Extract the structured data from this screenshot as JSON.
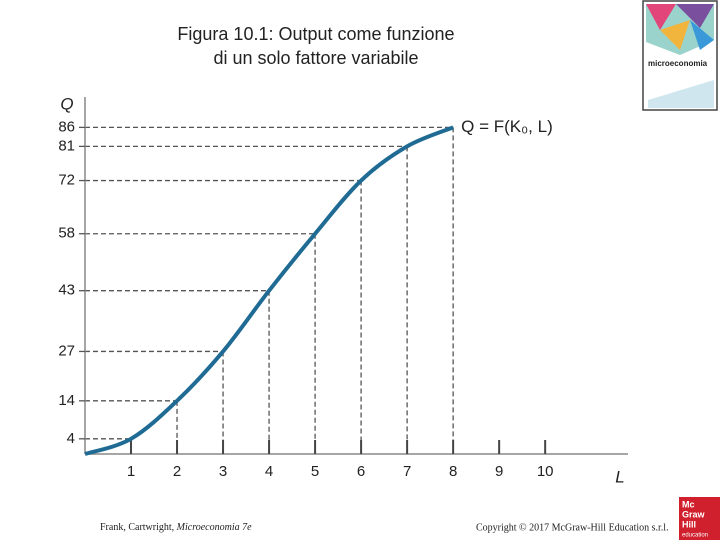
{
  "chart_data": {
    "type": "line",
    "title": [
      "Figura 10.1: Output come funzione",
      "di un solo fattore variabile"
    ],
    "y_label": "Q",
    "x_label": "L",
    "curve_label": "Q = F(K₀, L)",
    "x": [
      0,
      1,
      2,
      3,
      4,
      5,
      6,
      7,
      8
    ],
    "values": [
      0,
      4,
      14,
      27,
      43,
      58,
      72,
      81,
      86
    ],
    "color": "#1f6b94",
    "xlim": [
      0,
      11.8
    ],
    "ylim": [
      0,
      94
    ],
    "xticks": [
      1,
      2,
      3,
      4,
      5,
      6,
      7,
      8,
      9,
      10
    ],
    "yticks": [
      4,
      14,
      27,
      43,
      58,
      72,
      81,
      86
    ]
  },
  "footer": {
    "left": [
      "Frank, Cartwright, ",
      "Microeconomia 7e"
    ],
    "right": "Copyright © 2017 McGraw-Hill Education s.r.l."
  },
  "book_cover": {
    "title": "microeconomia"
  },
  "logo": [
    "Mc",
    "Graw",
    "Hill",
    "education"
  ]
}
